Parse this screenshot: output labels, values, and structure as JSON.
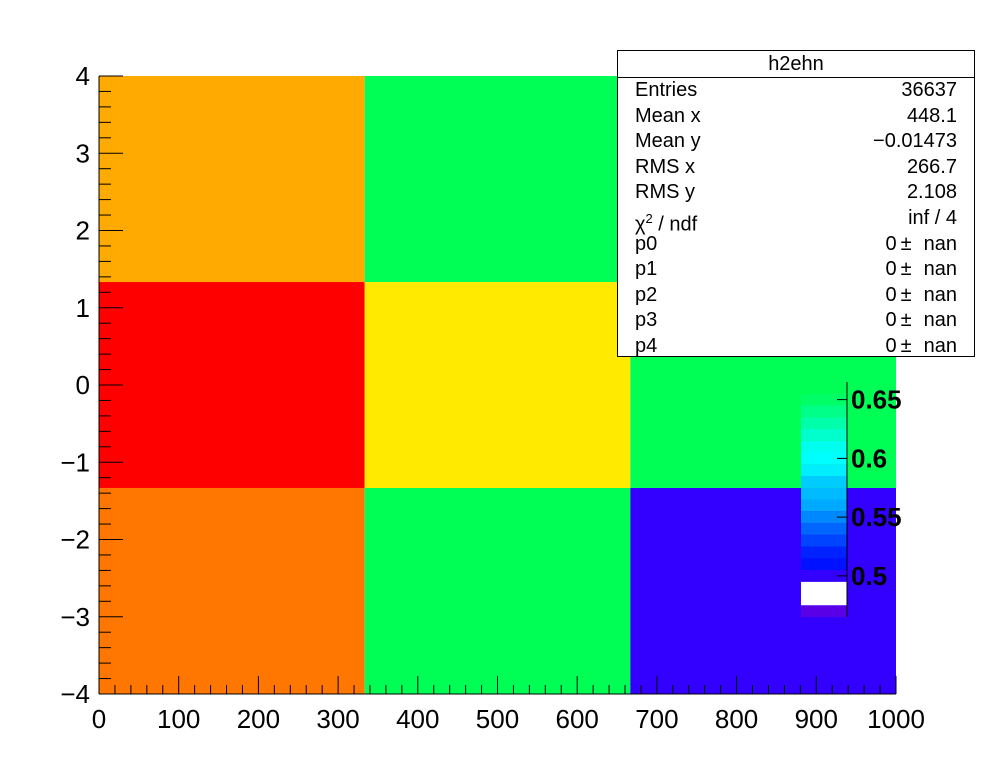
{
  "chart_data": {
    "type": "heatmap",
    "title": "",
    "xlabel": "",
    "ylabel": "",
    "xlim": [
      0,
      1000
    ],
    "ylim": [
      -4,
      4
    ],
    "x_edges": [
      0,
      333.33,
      666.67,
      1000
    ],
    "y_edges": [
      -4,
      -1.333,
      1.333,
      4
    ],
    "cells": [
      {
        "col": 0,
        "row": 0,
        "color": "#ff7700"
      },
      {
        "col": 1,
        "row": 0,
        "color": "#00ff55"
      },
      {
        "col": 2,
        "row": 0,
        "color": "#3300ff"
      },
      {
        "col": 0,
        "row": 1,
        "color": "#ff0000"
      },
      {
        "col": 1,
        "row": 1,
        "color": "#ffea00"
      },
      {
        "col": 2,
        "row": 1,
        "color": "#00ff55"
      },
      {
        "col": 0,
        "row": 2,
        "color": "#ffaa00"
      },
      {
        "col": 1,
        "row": 2,
        "color": "#00ff55"
      },
      {
        "col": 2,
        "row": 2,
        "color": "#00ff55"
      }
    ],
    "x_ticks": [
      {
        "value": 0,
        "label": "0"
      },
      {
        "value": 100,
        "label": "100"
      },
      {
        "value": 200,
        "label": "200"
      },
      {
        "value": 300,
        "label": "300"
      },
      {
        "value": 400,
        "label": "400"
      },
      {
        "value": 500,
        "label": "500"
      },
      {
        "value": 600,
        "label": "600"
      },
      {
        "value": 700,
        "label": "700"
      },
      {
        "value": 800,
        "label": "800"
      },
      {
        "value": 900,
        "label": "900"
      },
      {
        "value": 1000,
        "label": "1000"
      }
    ],
    "y_ticks": [
      {
        "value": -4,
        "label": "−4"
      },
      {
        "value": -3,
        "label": "−3"
      },
      {
        "value": -2,
        "label": "−2"
      },
      {
        "value": -1,
        "label": "−1"
      },
      {
        "value": 0,
        "label": "0"
      },
      {
        "value": 1,
        "label": "1"
      },
      {
        "value": 2,
        "label": "2"
      },
      {
        "value": 3,
        "label": "3"
      },
      {
        "value": 4,
        "label": "4"
      }
    ],
    "palette": {
      "range": [
        0.465,
        0.665
      ],
      "bands": [
        {
          "from": 0.465,
          "to": 0.475,
          "color": "#5a00e6"
        },
        {
          "from": 0.475,
          "to": 0.485,
          "color": "#ffffff"
        },
        {
          "from": 0.485,
          "to": 0.495,
          "color": "#ffffff"
        },
        {
          "from": 0.495,
          "to": 0.505,
          "color": "#3300ff"
        },
        {
          "from": 0.505,
          "to": 0.515,
          "color": "#0011ff"
        },
        {
          "from": 0.515,
          "to": 0.525,
          "color": "#0022ff"
        },
        {
          "from": 0.525,
          "to": 0.535,
          "color": "#0044ff"
        },
        {
          "from": 0.535,
          "to": 0.545,
          "color": "#0066ff"
        },
        {
          "from": 0.545,
          "to": 0.555,
          "color": "#0088ff"
        },
        {
          "from": 0.555,
          "to": 0.565,
          "color": "#00aaff"
        },
        {
          "from": 0.565,
          "to": 0.575,
          "color": "#00bbff"
        },
        {
          "from": 0.575,
          "to": 0.585,
          "color": "#00ccff"
        },
        {
          "from": 0.585,
          "to": 0.595,
          "color": "#00eeff"
        },
        {
          "from": 0.595,
          "to": 0.605,
          "color": "#00ffff"
        },
        {
          "from": 0.605,
          "to": 0.615,
          "color": "#00ffee"
        },
        {
          "from": 0.615,
          "to": 0.625,
          "color": "#00ffcc"
        },
        {
          "from": 0.625,
          "to": 0.635,
          "color": "#00ffaa"
        },
        {
          "from": 0.635,
          "to": 0.645,
          "color": "#00ff88"
        },
        {
          "from": 0.645,
          "to": 0.655,
          "color": "#00ff66"
        },
        {
          "from": 0.655,
          "to": 0.665,
          "color": "#00ff55"
        }
      ],
      "ticks": [
        {
          "value": 0.5,
          "label": "0.5"
        },
        {
          "value": 0.55,
          "label": "0.55"
        },
        {
          "value": 0.6,
          "label": "0.6"
        },
        {
          "value": 0.65,
          "label": "0.65"
        }
      ]
    }
  },
  "stats": {
    "title": "h2ehn",
    "rows": [
      {
        "label": "Entries",
        "value": "36637"
      },
      {
        "label": "Mean x",
        "value": "448.1"
      },
      {
        "label": "Mean y",
        "value": "−0.01473"
      },
      {
        "label": "RMS x",
        "value": "266.7"
      },
      {
        "label": "RMS y",
        "value": "2.108"
      }
    ],
    "chi2": {
      "label_sup": "2",
      "label_rest": " / ndf",
      "value": "inf / 4"
    },
    "params": [
      {
        "label": "p0",
        "value": "0",
        "error": "nan"
      },
      {
        "label": "p1",
        "value": "0",
        "error": "nan"
      },
      {
        "label": "p2",
        "value": "0",
        "error": "nan"
      },
      {
        "label": "p3",
        "value": "0",
        "error": "nan"
      },
      {
        "label": "p4",
        "value": "0",
        "error": "nan"
      }
    ],
    "pm_symbol": "±"
  }
}
